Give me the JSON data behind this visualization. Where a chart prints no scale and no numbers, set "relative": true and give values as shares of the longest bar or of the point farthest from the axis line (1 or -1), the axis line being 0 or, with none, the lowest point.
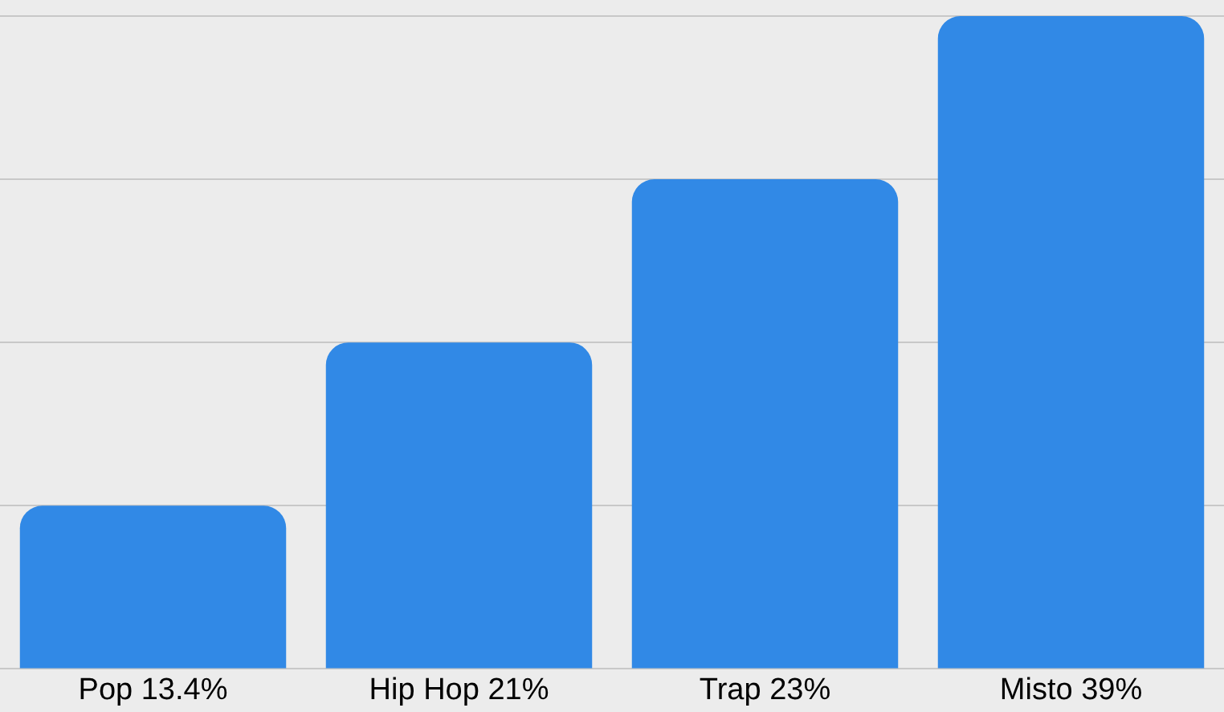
{
  "chart_data": {
    "type": "bar",
    "categories": [
      "Pop 13.4%",
      "Hip Hop 21%",
      "Trap 23%",
      "Misto 39%"
    ],
    "values": [
      0.25,
      0.5,
      0.75,
      1
    ],
    "color": "#3189e6",
    "relative": true,
    "grid": "y"
  }
}
